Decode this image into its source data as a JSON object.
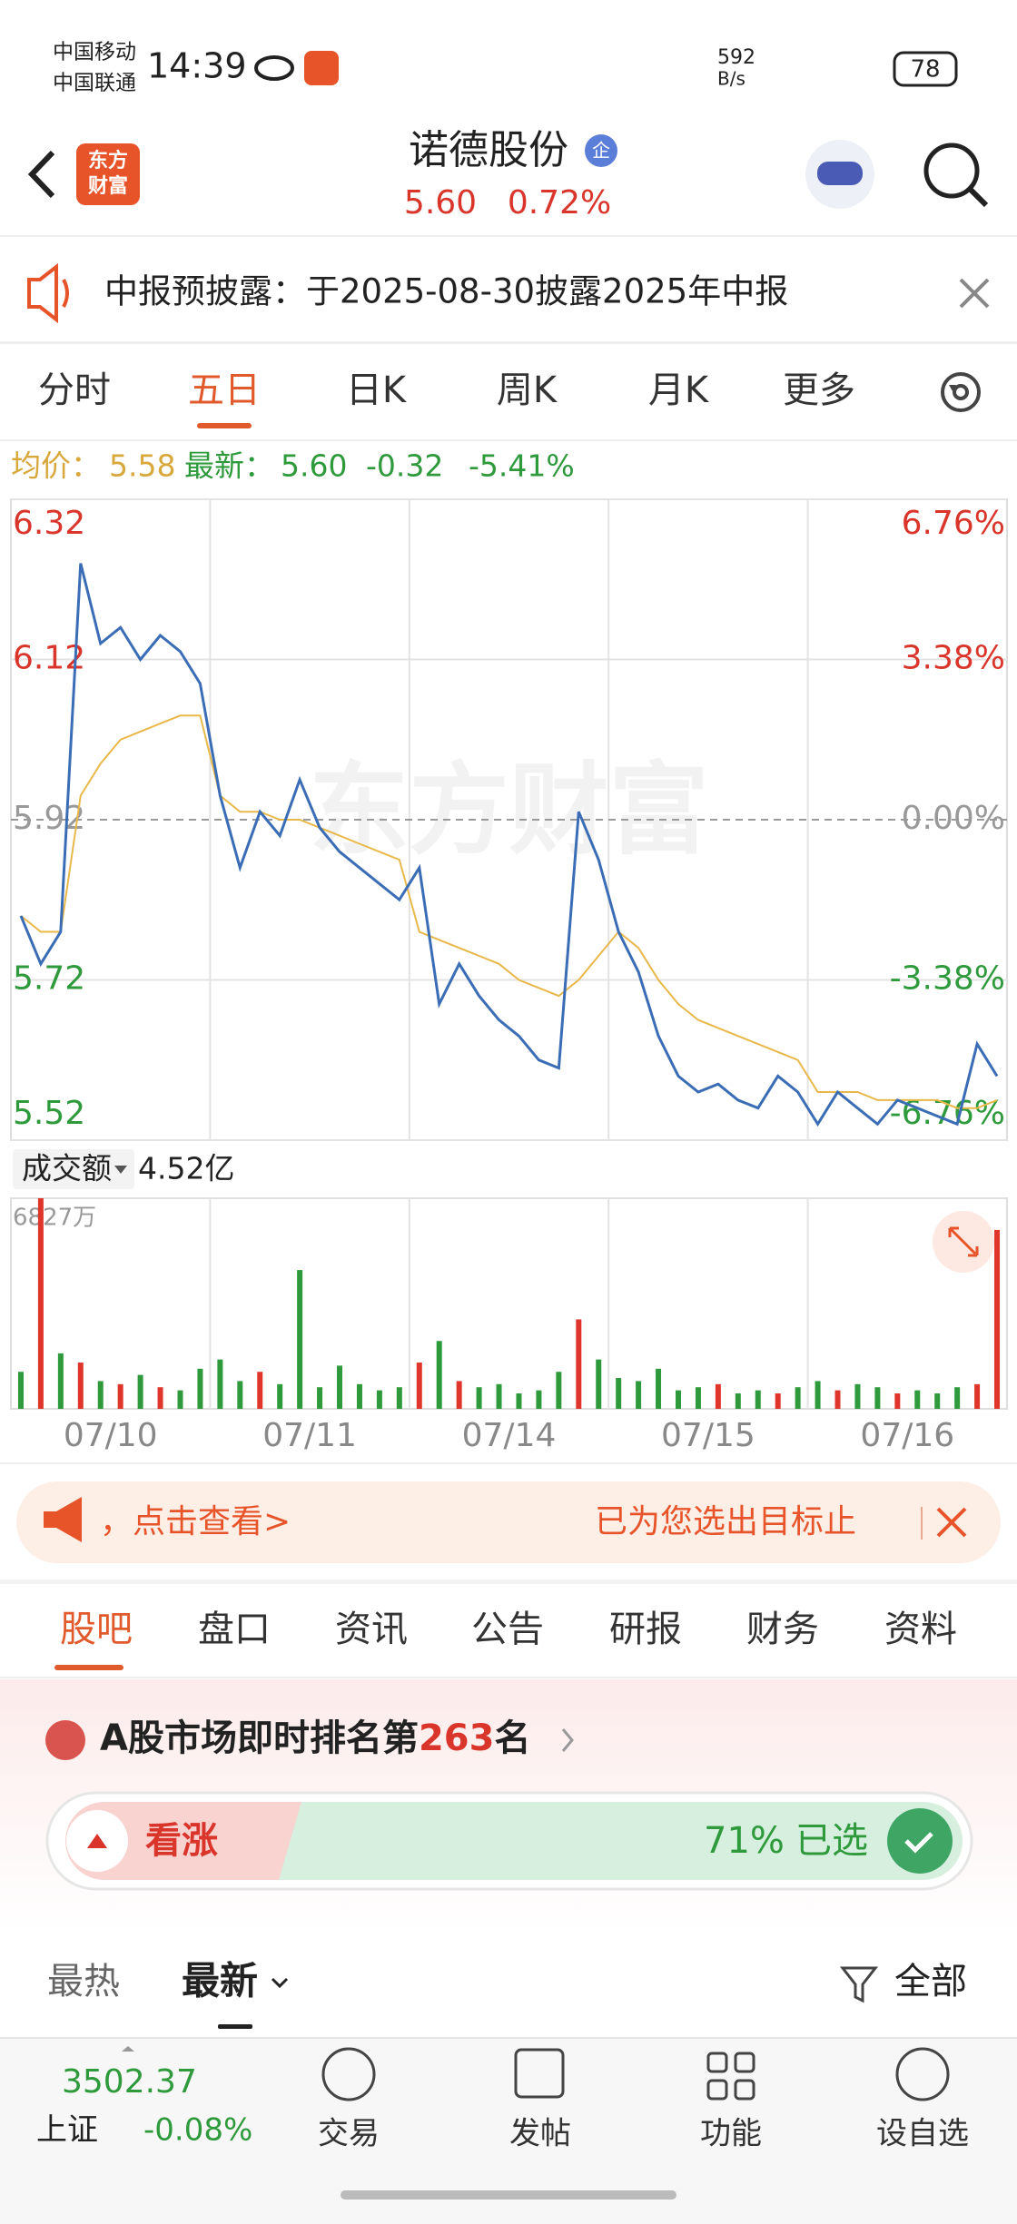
{
  "status_bar": {
    "carrier_1": "中国移动",
    "carrier_2": "中国联通",
    "time": "14:39",
    "speed": "592",
    "speed_unit": "B/s",
    "battery": "78"
  },
  "header": {
    "logo_line_1": "东方",
    "logo_line_2": "财富",
    "title": "诺德股份",
    "badge": "企",
    "price": "5.60",
    "change_pct": "0.72%"
  },
  "notice": {
    "text": "中报预披露：于2025-08-30披露2025年中报"
  },
  "chart_tabs": [
    "分时",
    "五日",
    "日K",
    "周K",
    "月K",
    "更多"
  ],
  "info": {
    "avg_label": "均价：",
    "avg": "5.58",
    "last_label": "最新：",
    "last": "5.60",
    "change": "-0.32",
    "change_pct": "-5.41%"
  },
  "volume_header": {
    "label": "成交额",
    "total": "4.52亿"
  },
  "chart_data": [
    {
      "type": "line",
      "watermark": "东方财富",
      "x": [
        0.5,
        1.5,
        2.5,
        3.5,
        4.5,
        5.5,
        6.5,
        7.5,
        8.5,
        9.5,
        10.5,
        11.5,
        12.5,
        13.5,
        14.5,
        15.5,
        16.5,
        17.5,
        18.5,
        19.5,
        20.5,
        21.5,
        22.5,
        23.5,
        24.5,
        25.5,
        26.5,
        27.5,
        28.5,
        29.5,
        30.5,
        31.5,
        32.5,
        33.5,
        34.5,
        35.5,
        36.5,
        37.5,
        38.5,
        39.5,
        40.5,
        41.5,
        42.5,
        43.5,
        44.5,
        45.5,
        46.5,
        47.5,
        48.5,
        49.5
      ],
      "xlim": [
        0,
        50
      ],
      "vgrid": [
        10,
        20,
        30,
        40
      ],
      "series": [
        {
          "color": "#3a6db5",
          "values": [
            5.8,
            5.74,
            5.78,
            6.24,
            6.14,
            6.16,
            6.12,
            6.15,
            6.13,
            6.09,
            5.95,
            5.86,
            5.93,
            5.9,
            5.97,
            5.91,
            5.88,
            5.86,
            5.84,
            5.82,
            5.86,
            5.69,
            5.74,
            5.7,
            5.67,
            5.65,
            5.62,
            5.61,
            5.93,
            5.87,
            5.78,
            5.73,
            5.65,
            5.6,
            5.58,
            5.59,
            5.57,
            5.56,
            5.6,
            5.58,
            5.54,
            5.58,
            5.56,
            5.54,
            5.57,
            5.56,
            5.55,
            5.54,
            5.64,
            5.6
          ]
        },
        {
          "color": "#e8b84a",
          "values": [
            5.8,
            5.78,
            5.78,
            5.95,
            5.99,
            6.02,
            6.03,
            6.04,
            6.05,
            6.05,
            5.95,
            5.93,
            5.93,
            5.92,
            5.92,
            5.91,
            5.9,
            5.89,
            5.88,
            5.87,
            5.78,
            5.77,
            5.76,
            5.75,
            5.74,
            5.72,
            5.71,
            5.7,
            5.72,
            5.75,
            5.78,
            5.76,
            5.72,
            5.69,
            5.67,
            5.66,
            5.65,
            5.64,
            5.63,
            5.62,
            5.58,
            5.58,
            5.58,
            5.57,
            5.57,
            5.57,
            5.57,
            5.56,
            5.56,
            5.57
          ]
        }
      ],
      "ylim": [
        5.52,
        6.32
      ],
      "yticks": [
        6.32,
        6.12,
        5.92,
        5.72,
        5.52
      ],
      "ytick_colors": [
        "#d9352b",
        "#d9352b",
        "#999999",
        "#2e9a3c",
        "#2e9a3c"
      ],
      "y2lim": [
        -6.76,
        6.76
      ],
      "y2ticks": [
        {
          "value": 6.76,
          "label": "6.76%"
        },
        {
          "value": 3.38,
          "label": "3.38%"
        },
        {
          "value": 0,
          "label": "0.00%"
        },
        {
          "value": -3.38,
          "label": "-3.38%"
        },
        {
          "value": -6.76,
          "label": "-6.76%"
        }
      ],
      "y2tick_colors": [
        "#d9352b",
        "#d9352b",
        "#999999",
        "#2e9a3c",
        "#2e9a3c"
      ],
      "dashed_ticks": [
        2
      ],
      "grid": true
    },
    {
      "type": "bar",
      "x": [
        0.5,
        1.5,
        2.5,
        3.5,
        4.5,
        5.5,
        6.5,
        7.5,
        8.5,
        9.5,
        10.5,
        11.5,
        12.5,
        13.5,
        14.5,
        15.5,
        16.5,
        17.5,
        18.5,
        19.5,
        20.5,
        21.5,
        22.5,
        23.5,
        24.5,
        25.5,
        26.5,
        27.5,
        28.5,
        29.5,
        30.5,
        31.5,
        32.5,
        33.5,
        34.5,
        35.5,
        36.5,
        37.5,
        38.5,
        39.5,
        40.5,
        41.5,
        42.5,
        43.5,
        44.5,
        45.5,
        46.5,
        47.5,
        48.5,
        49.5
      ],
      "xlim": [
        0,
        50
      ],
      "vgrid": [
        10,
        20,
        30,
        40
      ],
      "xticks": [
        {
          "value": 5,
          "label": "07/10"
        },
        {
          "value": 15,
          "label": "07/11"
        },
        {
          "value": 25,
          "label": "07/14"
        },
        {
          "value": 35,
          "label": "07/15"
        },
        {
          "value": 45,
          "label": "07/16"
        }
      ],
      "ylim": [
        0,
        6827
      ],
      "yticks": [
        {
          "value": 6827,
          "label": "6827万"
        }
      ],
      "values": [
        1200,
        6827,
        1800,
        1500,
        900,
        800,
        1100,
        700,
        600,
        1300,
        1600,
        900,
        1200,
        800,
        4500,
        700,
        1400,
        800,
        600,
        700,
        1500,
        2200,
        900,
        700,
        800,
        500,
        600,
        1200,
        2900,
        1600,
        1000,
        900,
        1300,
        600,
        700,
        800,
        500,
        600,
        500,
        700,
        900,
        600,
        800,
        700,
        500,
        600,
        500,
        700,
        800,
        5800
      ],
      "colors": [
        "#2e9a3c",
        "#e0352b",
        "#2e9a3c",
        "#e0352b",
        "#2e9a3c",
        "#e0352b",
        "#2e9a3c",
        "#e0352b",
        "#2e9a3c",
        "#2e9a3c",
        "#2e9a3c",
        "#2e9a3c",
        "#e0352b",
        "#2e9a3c",
        "#2e9a3c",
        "#2e9a3c",
        "#2e9a3c",
        "#2e9a3c",
        "#2e9a3c",
        "#2e9a3c",
        "#e0352b",
        "#2e9a3c",
        "#e0352b",
        "#2e9a3c",
        "#2e9a3c",
        "#2e9a3c",
        "#2e9a3c",
        "#2e9a3c",
        "#e0352b",
        "#2e9a3c",
        "#2e9a3c",
        "#2e9a3c",
        "#2e9a3c",
        "#2e9a3c",
        "#2e9a3c",
        "#e0352b",
        "#2e9a3c",
        "#2e9a3c",
        "#e0352b",
        "#2e9a3c",
        "#2e9a3c",
        "#e0352b",
        "#2e9a3c",
        "#2e9a3c",
        "#e0352b",
        "#2e9a3c",
        "#2e9a3c",
        "#2e9a3c",
        "#e0352b",
        "#e0352b"
      ]
    }
  ],
  "banner": {
    "left": "，点击查看>",
    "right": "已为您选出目标止"
  },
  "section_tabs": [
    "股吧",
    "盘口",
    "资讯",
    "公告",
    "研报",
    "财务",
    "资料"
  ],
  "rank": {
    "prefix": "A股市场即时排名第",
    "number": "263",
    "suffix": "名"
  },
  "vote": {
    "up": "看涨",
    "pct": "71%",
    "chosen": "已选"
  },
  "sort": {
    "hot": "最热",
    "new": "最新",
    "all": "全部"
  },
  "bottom": {
    "index_value": "3502.37",
    "index_name": "上证",
    "index_change": "-0.08%",
    "nav": [
      "交易",
      "发帖",
      "功能",
      "设自选"
    ]
  }
}
